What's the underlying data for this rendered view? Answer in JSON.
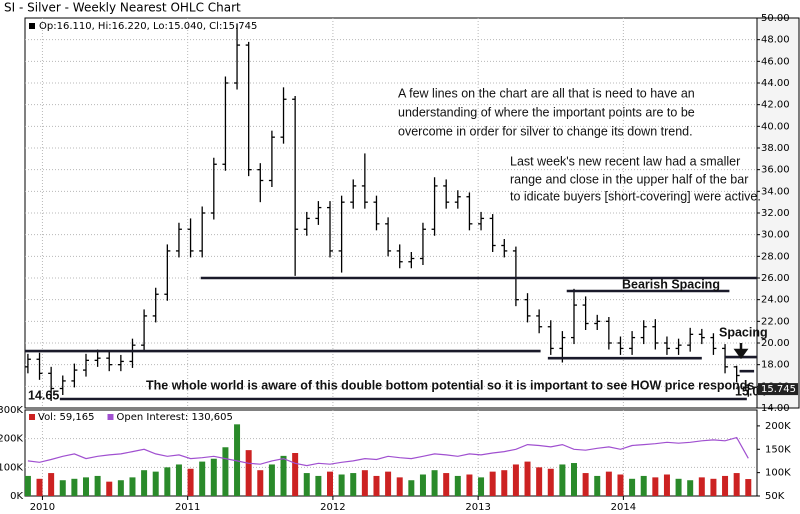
{
  "chart_data": [
    {
      "type": "ohlc",
      "title": "SI - Silver - Weekly Nearest OHLC Chart",
      "legend_text": "Op:16.110, Hi:16.220, Lo:15.040, Cl:15.745",
      "color": "#000000",
      "grid": true,
      "xlim": [
        2009.88,
        2014.92
      ],
      "xticks": [
        2010,
        2011,
        2012,
        2013,
        2014
      ],
      "ylim": [
        14,
        50
      ],
      "yticks": [
        {
          "value": 14,
          "label": "14.00"
        },
        {
          "value": 16,
          "label": "16.00"
        },
        {
          "value": 18,
          "label": "18.00"
        },
        {
          "value": 20,
          "label": "20.00"
        },
        {
          "value": 22,
          "label": "22.00"
        },
        {
          "value": 24,
          "label": "24.00"
        },
        {
          "value": 26,
          "label": "26.00"
        },
        {
          "value": 28,
          "label": "28.00"
        },
        {
          "value": 30,
          "label": "30.00"
        },
        {
          "value": 32,
          "label": "32.00"
        },
        {
          "value": 34,
          "label": "34.00"
        },
        {
          "value": 36,
          "label": "36.00"
        },
        {
          "value": 38,
          "label": "38.00"
        },
        {
          "value": 40,
          "label": "40.00"
        },
        {
          "value": 42,
          "label": "42.00"
        },
        {
          "value": 44,
          "label": "44.00"
        },
        {
          "value": 46,
          "label": "46.00"
        },
        {
          "value": 48,
          "label": "48.00"
        },
        {
          "value": 50,
          "label": "50.00"
        }
      ],
      "x": [
        2009.9,
        2009.98,
        2010.06,
        2010.14,
        2010.22,
        2010.3,
        2010.38,
        2010.46,
        2010.54,
        2010.62,
        2010.7,
        2010.78,
        2010.86,
        2010.94,
        2011.02,
        2011.1,
        2011.18,
        2011.26,
        2011.34,
        2011.42,
        2011.5,
        2011.58,
        2011.66,
        2011.74,
        2011.82,
        2011.9,
        2011.98,
        2012.06,
        2012.14,
        2012.22,
        2012.3,
        2012.38,
        2012.46,
        2012.54,
        2012.62,
        2012.7,
        2012.78,
        2012.86,
        2012.94,
        2013.02,
        2013.1,
        2013.18,
        2013.26,
        2013.34,
        2013.42,
        2013.5,
        2013.58,
        2013.66,
        2013.74,
        2013.82,
        2013.9,
        2013.98,
        2014.06,
        2014.14,
        2014.22,
        2014.3,
        2014.38,
        2014.46,
        2014.54,
        2014.62,
        2014.7,
        2014.78,
        2014.86
      ],
      "open": [
        17.8,
        18.5,
        17.2,
        15.8,
        16.5,
        17.5,
        18.4,
        18.6,
        18.0,
        18.3,
        19.8,
        22.5,
        24.5,
        28.5,
        30.5,
        28.5,
        32.0,
        36.5,
        44.0,
        47.5,
        36.0,
        35.0,
        39.0,
        42.5,
        30.5,
        31.5,
        32.5,
        28.5,
        33.0,
        34.5,
        33.0,
        31.0,
        28.5,
        27.5,
        27.8,
        30.5,
        34.5,
        33.0,
        33.5,
        31.0,
        31.5,
        29.0,
        28.5,
        24.0,
        22.5,
        21.5,
        19.5,
        20.5,
        23.5,
        21.8,
        22.0,
        20.0,
        19.5,
        20.5,
        21.5,
        20.0,
        19.5,
        19.8,
        20.8,
        20.5,
        19.5,
        17.8,
        16.11
      ],
      "high": [
        19.0,
        19.1,
        17.8,
        17.0,
        18.1,
        19.0,
        19.4,
        19.2,
        18.9,
        20.4,
        23.1,
        25.1,
        29.1,
        31.1,
        31.5,
        32.6,
        37.1,
        44.6,
        49.5,
        47.8,
        36.6,
        39.6,
        43.6,
        42.8,
        32.1,
        33.1,
        33.1,
        33.6,
        35.1,
        37.5,
        33.6,
        31.6,
        29.1,
        28.4,
        31.1,
        35.3,
        35.1,
        34.1,
        33.9,
        32.1,
        31.9,
        29.6,
        28.9,
        24.6,
        23.1,
        22.1,
        21.1,
        25.0,
        24.3,
        22.6,
        22.4,
        20.6,
        21.1,
        22.1,
        22.2,
        20.6,
        20.4,
        21.4,
        21.3,
        20.9,
        19.9,
        17.9,
        16.22
      ],
      "low": [
        17.2,
        16.6,
        14.65,
        15.2,
        15.9,
        16.9,
        17.8,
        17.4,
        17.4,
        17.7,
        19.2,
        21.9,
        23.9,
        27.9,
        27.9,
        27.9,
        31.4,
        35.9,
        43.4,
        35.4,
        33.0,
        34.4,
        38.4,
        26.2,
        29.9,
        30.9,
        27.9,
        26.5,
        32.4,
        32.4,
        30.4,
        28.0,
        26.9,
        26.9,
        27.2,
        29.9,
        32.4,
        32.4,
        30.4,
        30.4,
        28.4,
        27.9,
        23.4,
        21.9,
        20.9,
        18.9,
        18.2,
        19.9,
        21.2,
        21.2,
        19.4,
        18.9,
        18.9,
        19.9,
        19.4,
        18.9,
        18.9,
        19.2,
        19.9,
        18.9,
        17.2,
        16.4,
        15.04
      ],
      "close": [
        18.5,
        17.2,
        15.8,
        16.5,
        17.5,
        18.4,
        18.6,
        18.0,
        18.3,
        19.8,
        22.5,
        24.5,
        28.5,
        30.5,
        28.5,
        32.0,
        36.5,
        44.0,
        47.5,
        36.0,
        35.0,
        39.0,
        42.5,
        30.5,
        31.5,
        32.5,
        28.5,
        33.0,
        34.5,
        33.0,
        31.0,
        28.5,
        27.5,
        27.8,
        30.5,
        34.5,
        33.0,
        33.5,
        31.0,
        31.5,
        29.0,
        28.5,
        24.0,
        22.5,
        21.5,
        19.5,
        20.5,
        23.5,
        21.8,
        22.0,
        20.0,
        19.5,
        20.5,
        21.5,
        20.0,
        19.5,
        19.8,
        20.8,
        20.5,
        19.5,
        17.8,
        17.0,
        15.745
      ],
      "levels": [
        {
          "y": 26.0,
          "x": [
            2011.09,
            2014.92
          ]
        },
        {
          "y": 19.26,
          "x": [
            2009.88,
            2013.43
          ]
        },
        {
          "y": 18.6,
          "x": [
            2013.48,
            2014.54
          ]
        },
        {
          "y": 24.8,
          "x": [
            2013.61,
            2014.73
          ]
        },
        {
          "y": 14.83,
          "x": [
            2010.12,
            2014.85
          ]
        },
        {
          "y": 18.7,
          "x": [
            2014.7,
            2014.92
          ]
        },
        {
          "y": 17.4,
          "x": [
            2014.8,
            2014.9
          ]
        }
      ],
      "annotations": [
        "A few lines on the chart are all that is need to have an",
        "understanding of where the important points are to be",
        "overcome in order for silver to change its down trend.",
        "Last week's new recent law had a smaller",
        "range and close in the upper half of the bar",
        "to idicate buyers [short-covering] were active.",
        "Bearish Spacing",
        "Spacing",
        "The whole world is aware of this double bottom potential so it is important to see HOW price responds"
      ]
    },
    {
      "type": "volume",
      "grid": true,
      "xlim": [
        2009.88,
        2014.92
      ],
      "xticks": [
        2010,
        2011,
        2012,
        2013,
        2014
      ],
      "ylim": [
        0,
        300000
      ],
      "yticks": [
        {
          "value": 0,
          "label": "0K"
        },
        {
          "value": 100000,
          "label": "100K"
        },
        {
          "value": 200000,
          "label": "200K"
        },
        {
          "value": 300000,
          "label": "300K"
        }
      ],
      "y2lim": [
        50000,
        234000
      ],
      "y2ticks": [
        {
          "value": 50000,
          "label": "50K"
        },
        {
          "value": 100000,
          "label": "100K"
        },
        {
          "value": 150000,
          "label": "150K"
        },
        {
          "value": 200000,
          "label": "200K"
        }
      ],
      "x": [
        2009.9,
        2009.98,
        2010.06,
        2010.14,
        2010.22,
        2010.3,
        2010.38,
        2010.46,
        2010.54,
        2010.62,
        2010.7,
        2010.78,
        2010.86,
        2010.94,
        2011.02,
        2011.1,
        2011.18,
        2011.26,
        2011.34,
        2011.42,
        2011.5,
        2011.58,
        2011.66,
        2011.74,
        2011.82,
        2011.9,
        2011.98,
        2012.06,
        2012.14,
        2012.22,
        2012.3,
        2012.38,
        2012.46,
        2012.54,
        2012.62,
        2012.7,
        2012.78,
        2012.86,
        2012.94,
        2013.02,
        2013.1,
        2013.18,
        2013.26,
        2013.34,
        2013.42,
        2013.5,
        2013.58,
        2013.66,
        2013.74,
        2013.82,
        2013.9,
        2013.98,
        2014.06,
        2014.14,
        2014.22,
        2014.3,
        2014.38,
        2014.46,
        2014.54,
        2014.62,
        2014.7,
        2014.78,
        2014.86
      ],
      "series": [
        {
          "name": "Vol: 59,165",
          "color": "#cc2222",
          "up_color": "#2a8a2a",
          "values": [
            70000,
            60000,
            80000,
            55000,
            60000,
            65000,
            70000,
            50000,
            55000,
            65000,
            90000,
            85000,
            100000,
            110000,
            95000,
            120000,
            130000,
            170000,
            250000,
            160000,
            90000,
            110000,
            140000,
            150000,
            80000,
            70000,
            85000,
            75000,
            80000,
            90000,
            70000,
            85000,
            65000,
            55000,
            75000,
            90000,
            80000,
            70000,
            75000,
            65000,
            85000,
            90000,
            110000,
            120000,
            100000,
            95000,
            110000,
            115000,
            80000,
            70000,
            85000,
            75000,
            60000,
            70000,
            65000,
            75000,
            60000,
            55000,
            65000,
            60000,
            70000,
            80000,
            59165
          ]
        },
        {
          "name": "Open Interest: 130,605",
          "color": "#a050d0",
          "axis": "y2",
          "values": [
            125000,
            122000,
            128000,
            135000,
            140000,
            130000,
            135000,
            138000,
            140000,
            145000,
            150000,
            140000,
            135000,
            138000,
            130000,
            132000,
            135000,
            130000,
            125000,
            120000,
            118000,
            125000,
            130000,
            120000,
            115000,
            120000,
            118000,
            122000,
            125000,
            130000,
            128000,
            135000,
            132000,
            130000,
            135000,
            140000,
            138000,
            135000,
            140000,
            138000,
            142000,
            145000,
            150000,
            160000,
            158000,
            155000,
            160000,
            150000,
            148000,
            152000,
            155000,
            150000,
            158000,
            160000,
            162000,
            165000,
            163000,
            165000,
            168000,
            170000,
            168000,
            175000,
            130605
          ]
        }
      ]
    }
  ]
}
